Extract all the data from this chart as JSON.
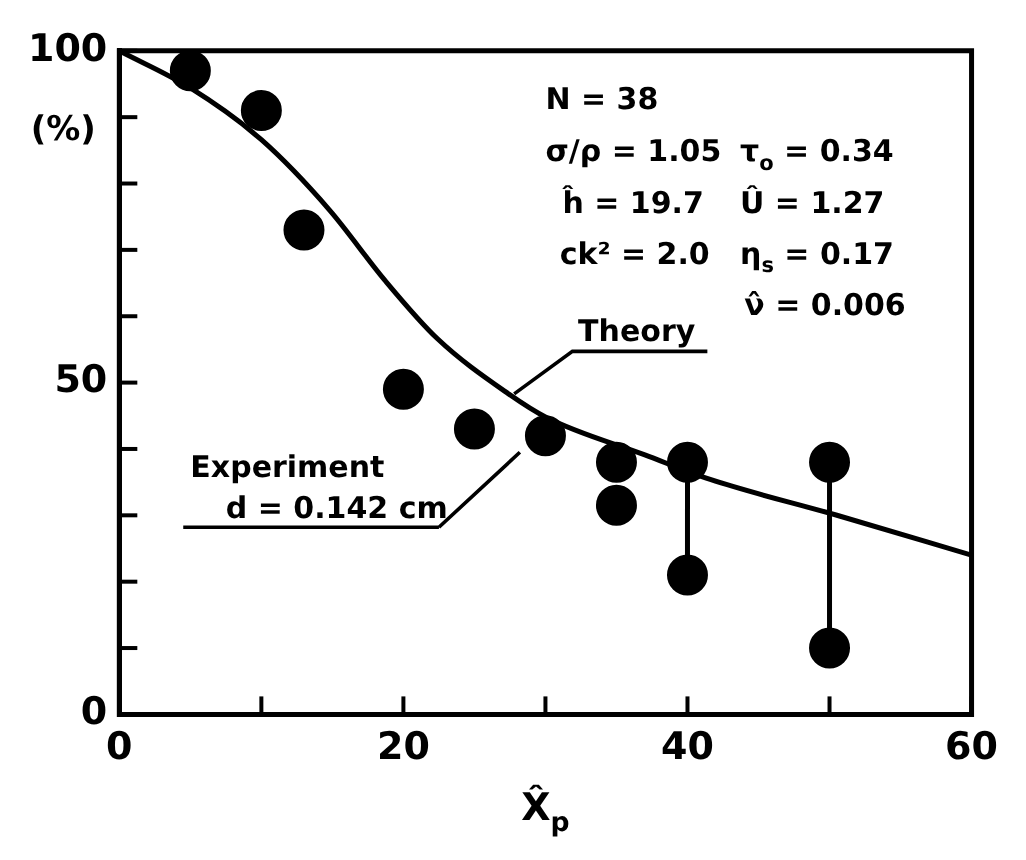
{
  "chart_data": {
    "type": "scatter",
    "xlabel": "X̂$_{p}$",
    "ylabel": "(%)",
    "xlim": [
      0,
      60
    ],
    "xticks": [
      0,
      {
        "value": 10,
        "label": null
      },
      20,
      {
        "value": 30,
        "label": null
      },
      40,
      {
        "value": 50,
        "label": null
      },
      60
    ],
    "ylim": [
      0,
      100
    ],
    "yticks": [
      0,
      {
        "value": 10,
        "label": null
      },
      {
        "value": 20,
        "label": null
      },
      {
        "value": 30,
        "label": null
      },
      {
        "value": 40,
        "label": null
      },
      50,
      {
        "value": 60,
        "label": null
      },
      {
        "value": 70,
        "label": null
      },
      {
        "value": 80,
        "label": null
      },
      {
        "value": 90,
        "label": null
      },
      100
    ],
    "annotations": [
      "N = 38",
      "σ/ρ = 1.05",
      "τ$_{o}$ = 0.34",
      "ĥ = 19.7",
      "Û = 1.27",
      "ck² = 2.0",
      "η$_{s}$ = 0.17",
      "ν̂ = 0.006"
    ],
    "series": [
      {
        "name": "Theory",
        "type": "line",
        "marker": "none",
        "color": "#000000",
        "x": [
          0,
          5,
          10,
          14.8,
          18.7,
          22.4,
          27.4,
          30.1,
          37,
          41.6,
          50.7,
          60
        ],
        "values": [
          100,
          94.4,
          86.6,
          76,
          65.4,
          56.6,
          48.3,
          44.7,
          39.1,
          35.4,
          29.9,
          24
        ]
      },
      {
        "name": "Experiment d = 0.142 cm",
        "type": "scatter",
        "marker": "circle",
        "color": "#000000",
        "x": [
          5,
          10,
          13,
          20,
          25,
          30,
          35,
          35,
          40,
          40,
          50,
          50
        ],
        "values": [
          97,
          91,
          73,
          49,
          43,
          42,
          38,
          31.5,
          38,
          21,
          38,
          10
        ]
      },
      {
        "type": "line",
        "marker": "none",
        "color": "#000000",
        "x": [
          40,
          40
        ],
        "values": [
          38,
          21
        ]
      },
      {
        "type": "line",
        "marker": "none",
        "color": "#000000",
        "x": [
          50,
          50
        ],
        "values": [
          38,
          10
        ]
      }
    ]
  }
}
